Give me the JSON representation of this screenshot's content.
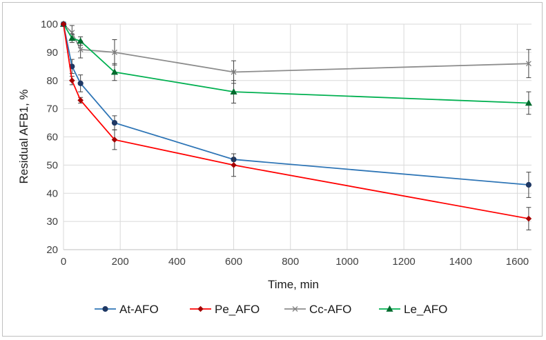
{
  "chart_data": {
    "type": "line",
    "title": "",
    "xlabel": "Time, min",
    "ylabel": "Residual AFB1, %",
    "xlim": [
      0,
      1650
    ],
    "ylim": [
      20,
      100
    ],
    "xticks": [
      0,
      200,
      400,
      600,
      800,
      1000,
      1200,
      1400,
      1600
    ],
    "yticks": [
      20,
      30,
      40,
      50,
      60,
      70,
      80,
      90,
      100
    ],
    "xtick_labels": [
      "0",
      "200",
      "400",
      "600",
      "800",
      "1000",
      "1200",
      "1400",
      "1600"
    ],
    "ytick_labels": [
      "20",
      "30",
      "40",
      "50",
      "60",
      "70",
      "80",
      "90",
      "100"
    ],
    "grid": true,
    "legend_position": "bottom",
    "series": [
      {
        "name": "At-AFO",
        "color": "#2e75b6",
        "marker": "circle",
        "x": [
          0,
          30,
          60,
          180,
          600,
          1640
        ],
        "values": [
          100,
          85,
          79,
          65,
          52,
          43
        ],
        "errors": [
          0,
          2.5,
          3,
          2.5,
          2,
          4.5
        ]
      },
      {
        "name": "Pe_AFO",
        "color": "#ff0000",
        "marker": "diamond",
        "x": [
          0,
          30,
          60,
          180,
          600,
          1640
        ],
        "values": [
          100,
          80,
          73,
          59,
          50,
          31
        ],
        "errors": [
          0,
          1.5,
          1,
          3.5,
          4,
          4
        ]
      },
      {
        "name": "Cc-AFO",
        "color": "#8c8c8c",
        "marker": "x",
        "x": [
          0,
          30,
          60,
          180,
          600,
          1640
        ],
        "values": [
          100,
          97,
          91,
          90,
          83,
          86
        ],
        "errors": [
          0,
          2.5,
          3,
          4.5,
          4,
          5
        ]
      },
      {
        "name": "Le_AFO",
        "color": "#00b050",
        "marker": "triangle",
        "x": [
          0,
          30,
          60,
          180,
          600,
          1640
        ],
        "values": [
          100,
          95,
          94,
          83,
          76,
          72
        ],
        "errors": [
          0,
          1.5,
          1.5,
          3,
          4,
          4
        ]
      }
    ]
  }
}
